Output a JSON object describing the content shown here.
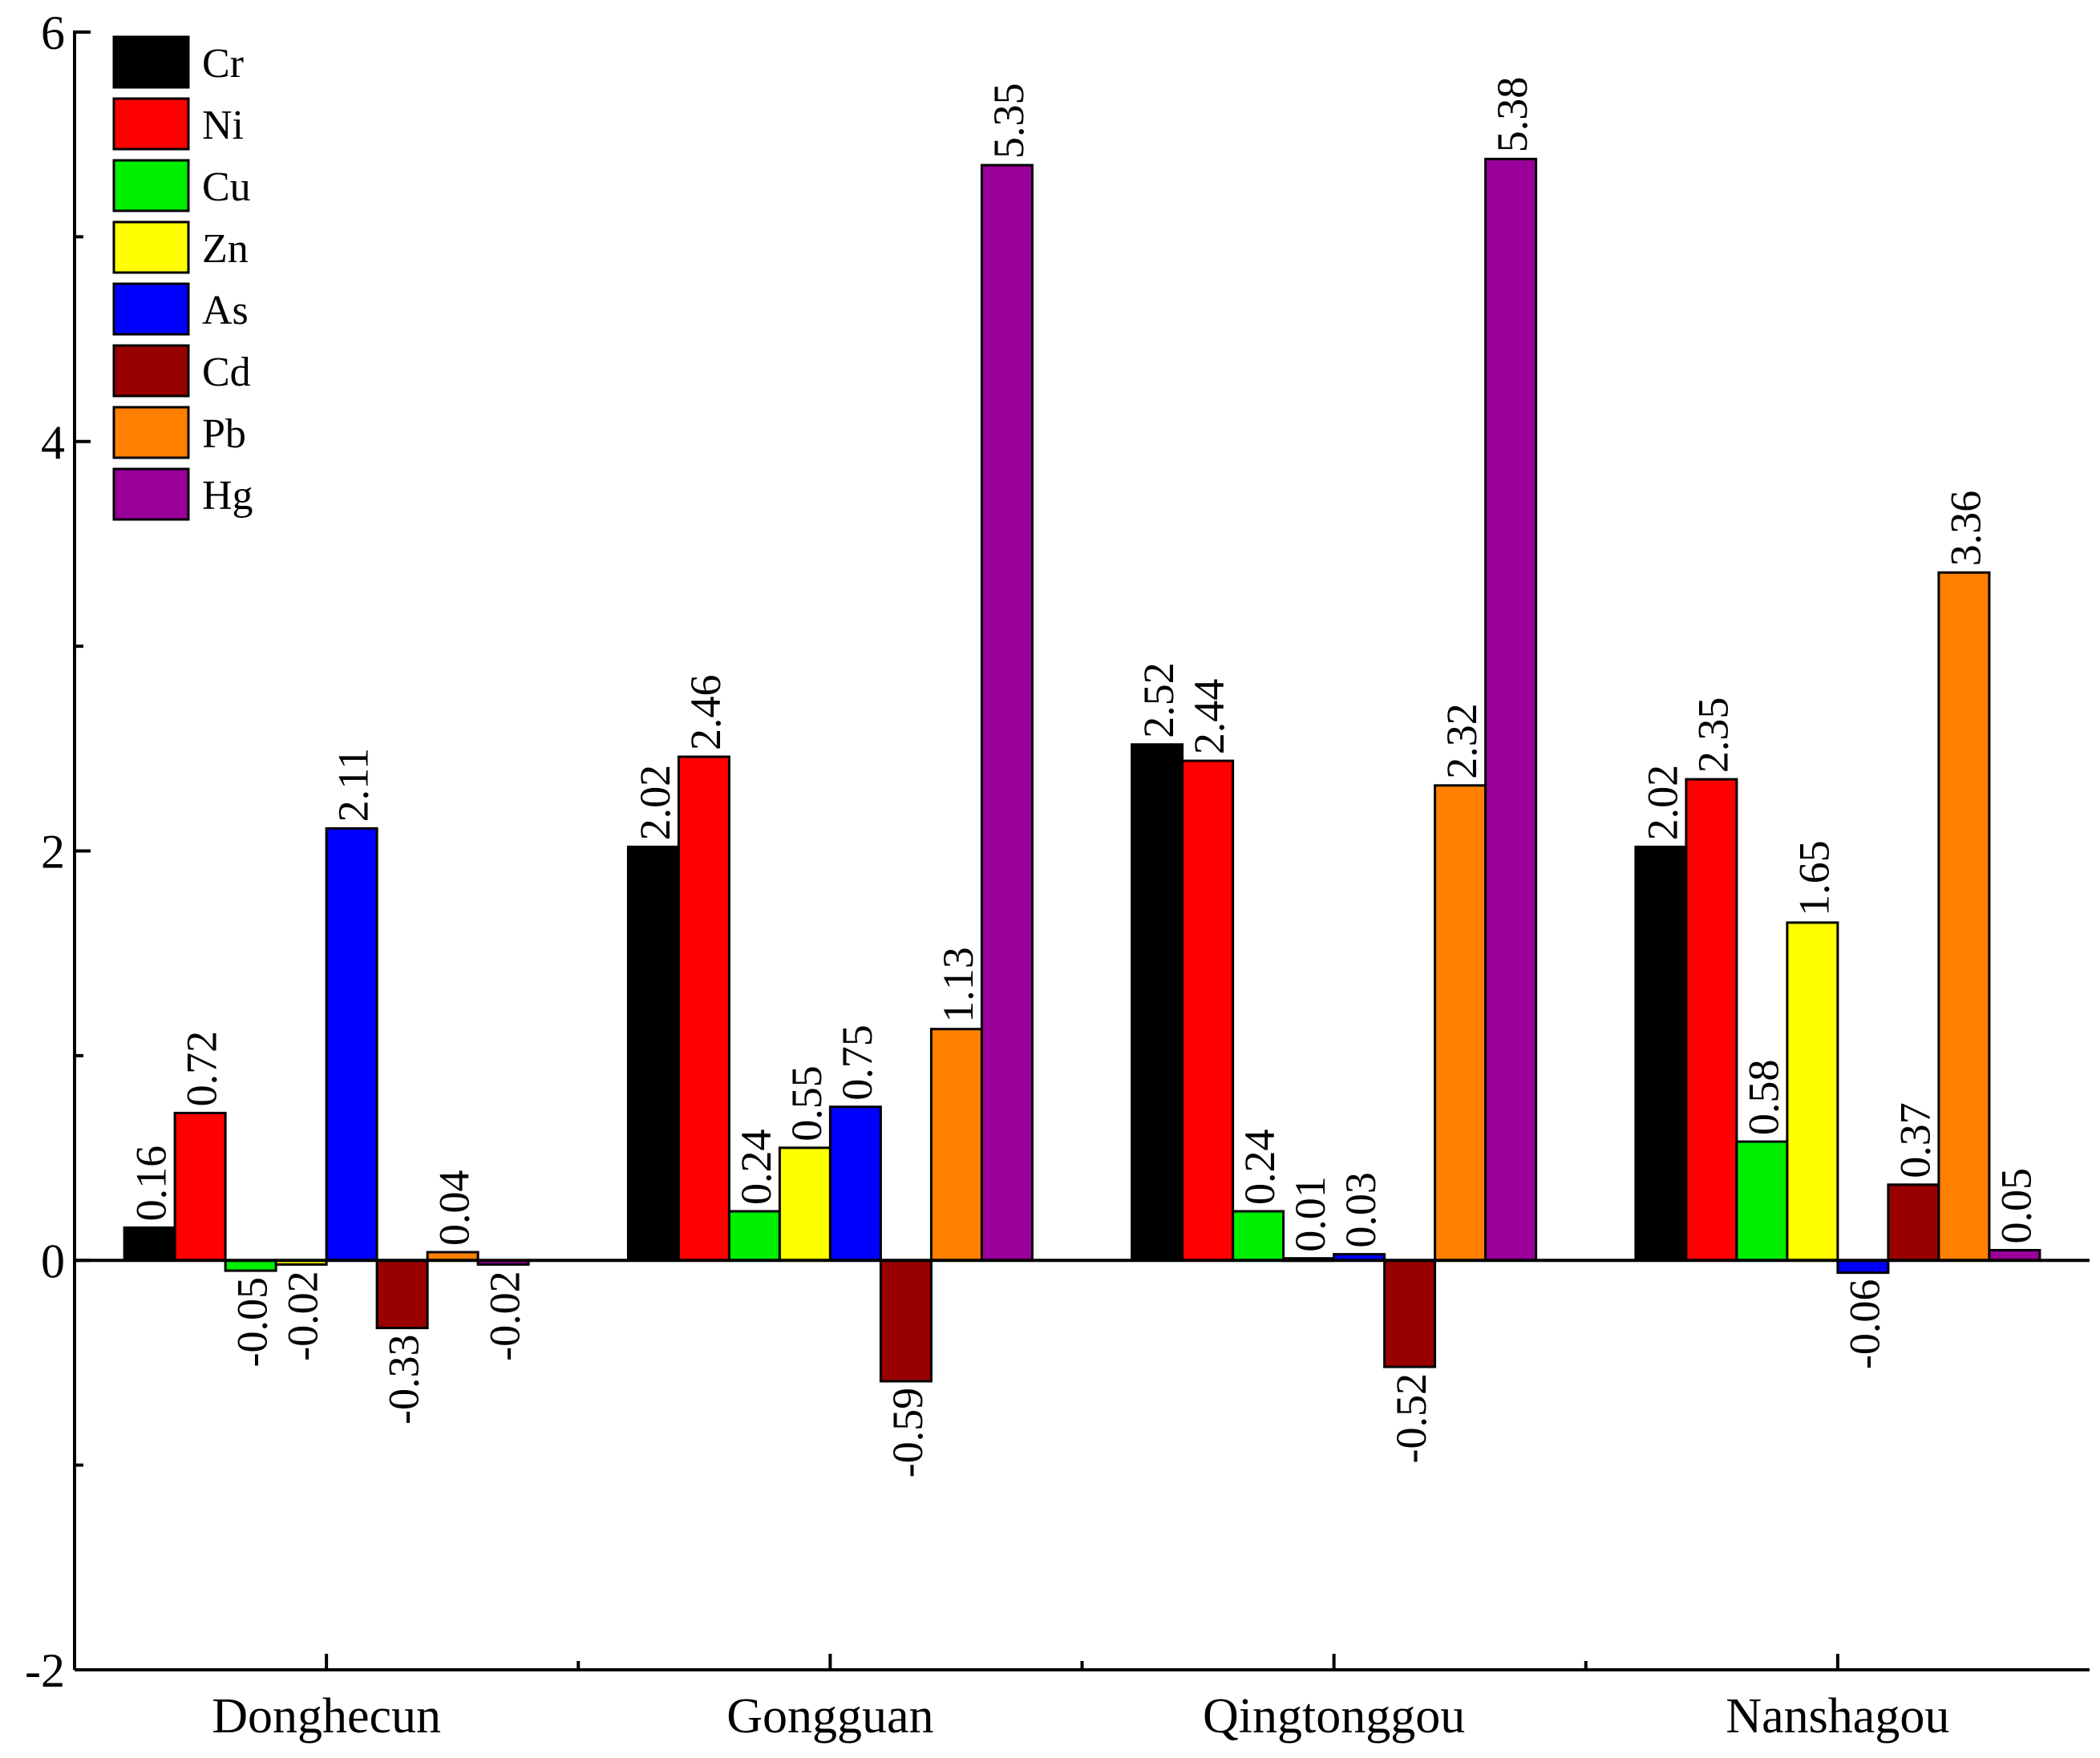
{
  "chart_data": {
    "type": "bar",
    "title": "",
    "xlabel": "",
    "ylabel": "",
    "ylim": [
      -2,
      6
    ],
    "yticks": [
      "-2",
      "0",
      "2",
      "4",
      "6"
    ],
    "grid": false,
    "legend_position": "top-left",
    "categories": [
      "Donghecun",
      "Gongguan",
      "Qingtonggou",
      "Nanshagou"
    ],
    "series": [
      {
        "name": "Cr",
        "color": "#000000",
        "values": [
          0.16,
          2.02,
          2.52,
          2.02
        ],
        "labels": [
          "0.16",
          "2.02",
          "2.52",
          "2.02"
        ]
      },
      {
        "name": "Ni",
        "color": "#ff0000",
        "values": [
          0.72,
          2.46,
          2.44,
          2.35
        ],
        "labels": [
          "0.72",
          "2.46",
          "2.44",
          "2.35"
        ]
      },
      {
        "name": "Cu",
        "color": "#00ee00",
        "values": [
          -0.05,
          0.24,
          0.24,
          0.58
        ],
        "labels": [
          "-0.05",
          "0.24",
          "0.24",
          "0.58"
        ]
      },
      {
        "name": "Zn",
        "color": "#ffff00",
        "values": [
          -0.02,
          0.55,
          0.01,
          1.65
        ],
        "labels": [
          "-0.02",
          "0.55",
          "0.01",
          "1.65"
        ]
      },
      {
        "name": "As",
        "color": "#0000ff",
        "values": [
          2.11,
          0.75,
          0.03,
          -0.06
        ],
        "labels": [
          "2.11",
          "0.75",
          "0.03",
          "-0.06"
        ]
      },
      {
        "name": "Cd",
        "color": "#990000",
        "values": [
          -0.33,
          -0.59,
          -0.52,
          0.37
        ],
        "labels": [
          "-0.33",
          "-0.59",
          "-0.52",
          "0.37"
        ]
      },
      {
        "name": "Pb",
        "color": "#ff8000",
        "values": [
          0.04,
          1.13,
          2.32,
          3.36
        ],
        "labels": [
          "0.04",
          "1.13",
          "2.32",
          "3.36"
        ]
      },
      {
        "name": "Hg",
        "color": "#990099",
        "values": [
          -0.02,
          5.35,
          5.38,
          0.05
        ],
        "labels": [
          "-0.02",
          "5.35",
          "5.38",
          "0.05"
        ]
      }
    ]
  }
}
